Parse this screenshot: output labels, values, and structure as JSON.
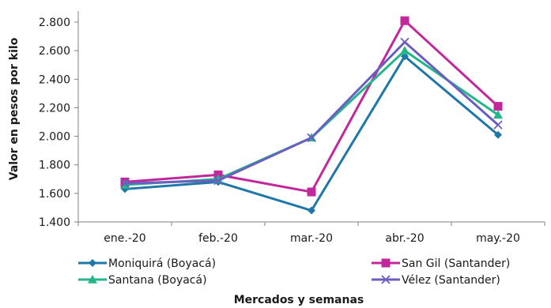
{
  "chart_data": {
    "type": "line",
    "categories": [
      "ene.-20",
      "feb.-20",
      "mar.-20",
      "abr.-20",
      "may.-20"
    ],
    "ylabel": "Valor en pesos por kilo",
    "xlabel": "Mercados y semanas",
    "ylim": [
      1400,
      2800
    ],
    "yticks": [
      "1.400",
      "1.600",
      "1.800",
      "2.000",
      "2.200",
      "2.400",
      "2.600",
      "2.800"
    ],
    "grid": false,
    "legend_position": "bottom",
    "series": [
      {
        "name": "Moniquirá (Boyacá)",
        "values": [
          1630,
          1680,
          1480,
          2560,
          2010
        ],
        "color": "#1f77a8",
        "marker": "diamond"
      },
      {
        "name": "San Gil (Santander)",
        "values": [
          1680,
          1730,
          1610,
          2810,
          2210
        ],
        "color": "#c2279b",
        "marker": "square"
      },
      {
        "name": "Santana (Boyacá)",
        "values": [
          1660,
          1700,
          1990,
          2600,
          2150
        ],
        "color": "#25b58a",
        "marker": "triangle"
      },
      {
        "name": "Vélez (Santander)",
        "values": [
          1670,
          1690,
          1990,
          2660,
          2080
        ],
        "color": "#6a5fc1",
        "marker": "x"
      }
    ]
  }
}
